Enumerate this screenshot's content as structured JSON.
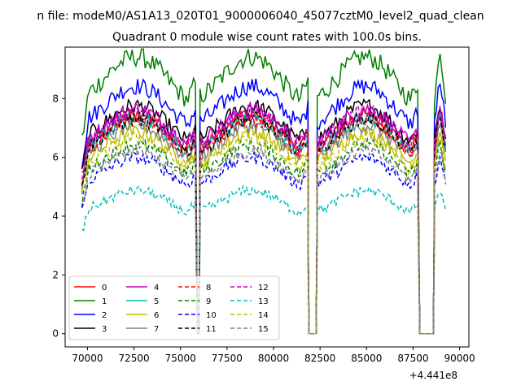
{
  "figure": {
    "suptitle": "n file: modeM0/AS1A13_020T01_9000006040_45077cztM0_level2_quad_clean",
    "title": "Quadrant 0 module wise count rates with 100.0s bins.",
    "offset_label": "+4.441e8"
  },
  "chart_data": {
    "type": "line",
    "title": "Quadrant 0 module wise count rates with 100.0s bins.",
    "xlabel": "",
    "ylabel": "",
    "x_offset": 444100000,
    "xlim": [
      68800,
      90500
    ],
    "ylim": [
      -0.45,
      9.75
    ],
    "xticks": [
      70000,
      72500,
      75000,
      77500,
      80000,
      82500,
      85000,
      87500,
      90000
    ],
    "xtick_labels": [
      "70000",
      "72500",
      "75000",
      "77500",
      "80000",
      "82500",
      "85000",
      "87500",
      "90000"
    ],
    "yticks": [
      0,
      2,
      4,
      6,
      8
    ],
    "ytick_labels": [
      "0",
      "2",
      "4",
      "6",
      "8"
    ],
    "grid": false,
    "legend_location": "lower-left",
    "segments": [
      [
        69700,
        75850
      ],
      [
        76050,
        81850
      ],
      [
        82350,
        87800
      ],
      [
        88650,
        89300
      ]
    ],
    "gaps": [
      [
        75850,
        76050
      ],
      [
        81850,
        82350
      ],
      [
        87800,
        88650
      ]
    ],
    "series": [
      {
        "name": "0",
        "color": "#ff0000",
        "dash": "solid",
        "level": 6.7
      },
      {
        "name": "1",
        "color": "#008000",
        "dash": "solid",
        "level": 8.5
      },
      {
        "name": "2",
        "color": "#0000ff",
        "dash": "solid",
        "level": 7.6
      },
      {
        "name": "3",
        "color": "#000000",
        "dash": "solid",
        "level": 7.0
      },
      {
        "name": "4",
        "color": "#bf00bf",
        "dash": "solid",
        "level": 6.9
      },
      {
        "name": "5",
        "color": "#00bfbf",
        "dash": "solid",
        "level": 6.6
      },
      {
        "name": "6",
        "color": "#bfbf00",
        "dash": "solid",
        "level": 6.2
      },
      {
        "name": "7",
        "color": "#808080",
        "dash": "solid",
        "level": 6.4
      },
      {
        "name": "8",
        "color": "#ff0000",
        "dash": "dashed",
        "level": 6.6
      },
      {
        "name": "9",
        "color": "#008000",
        "dash": "dashed",
        "level": 5.8
      },
      {
        "name": "10",
        "color": "#0000ff",
        "dash": "dashed",
        "level": 5.4
      },
      {
        "name": "11",
        "color": "#000000",
        "dash": "dashed",
        "level": 6.6
      },
      {
        "name": "12",
        "color": "#bf00bf",
        "dash": "dashed",
        "level": 6.8
      },
      {
        "name": "13",
        "color": "#00bfbf",
        "dash": "dashed",
        "level": 4.4
      },
      {
        "name": "14",
        "color": "#bfbf00",
        "dash": "dashed",
        "level": 6.0
      },
      {
        "name": "15",
        "color": "#808080",
        "dash": "dashed",
        "level": 5.6
      }
    ]
  }
}
